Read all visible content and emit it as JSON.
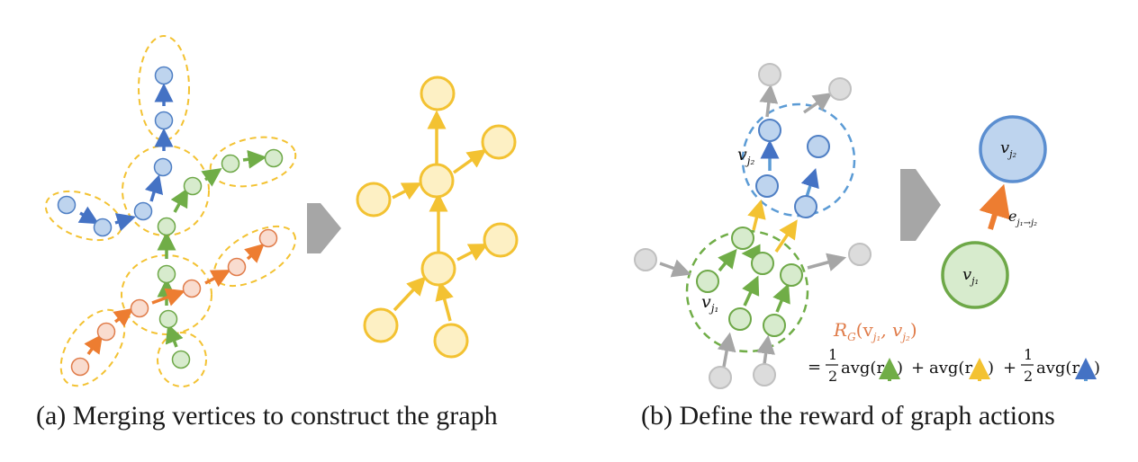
{
  "captions": {
    "a": "(a) Merging vertices to construct the graph",
    "b": "(b) Define the reward of graph actions"
  },
  "labels": {
    "vj1": "v",
    "vj1_sub": "j₁",
    "vj2": "v",
    "vj2_sub": "j₂",
    "edge": "e",
    "edge_sub": "j₁→j₂",
    "reward_R": "R",
    "reward_sub": "G",
    "reward_args": "(v",
    "reward_arg1_sub": "j₁",
    "reward_comma": ", v",
    "reward_arg2_sub": "j₂",
    "reward_close": ")",
    "eq": "=",
    "half_num": "1",
    "half_den": "2",
    "term_avg": "avg(r",
    "term_close": ")",
    "plus": "+"
  },
  "colors": {
    "blue_fill": "#bed4ee",
    "blue_stroke": "#4f7fc4",
    "blue_arrow": "#4472c4",
    "green_fill": "#d7ebcd",
    "green_stroke": "#6ea848",
    "green_arrow": "#70ad47",
    "orange_fill": "#f9dccf",
    "orange_stroke": "#e07c4a",
    "orange_arrow": "#ed7d31",
    "yellow_fill": "#fdf0c4",
    "yellow_stroke": "#f3c232",
    "yellow_arrow": "#f3c232",
    "gray_fill": "#dcdcdc",
    "gray_stroke": "#aaaaaa",
    "gray_arrow": "#a6a6a6",
    "big_arrow": "#a6a6a6",
    "reward_text": "#e07c4a"
  }
}
